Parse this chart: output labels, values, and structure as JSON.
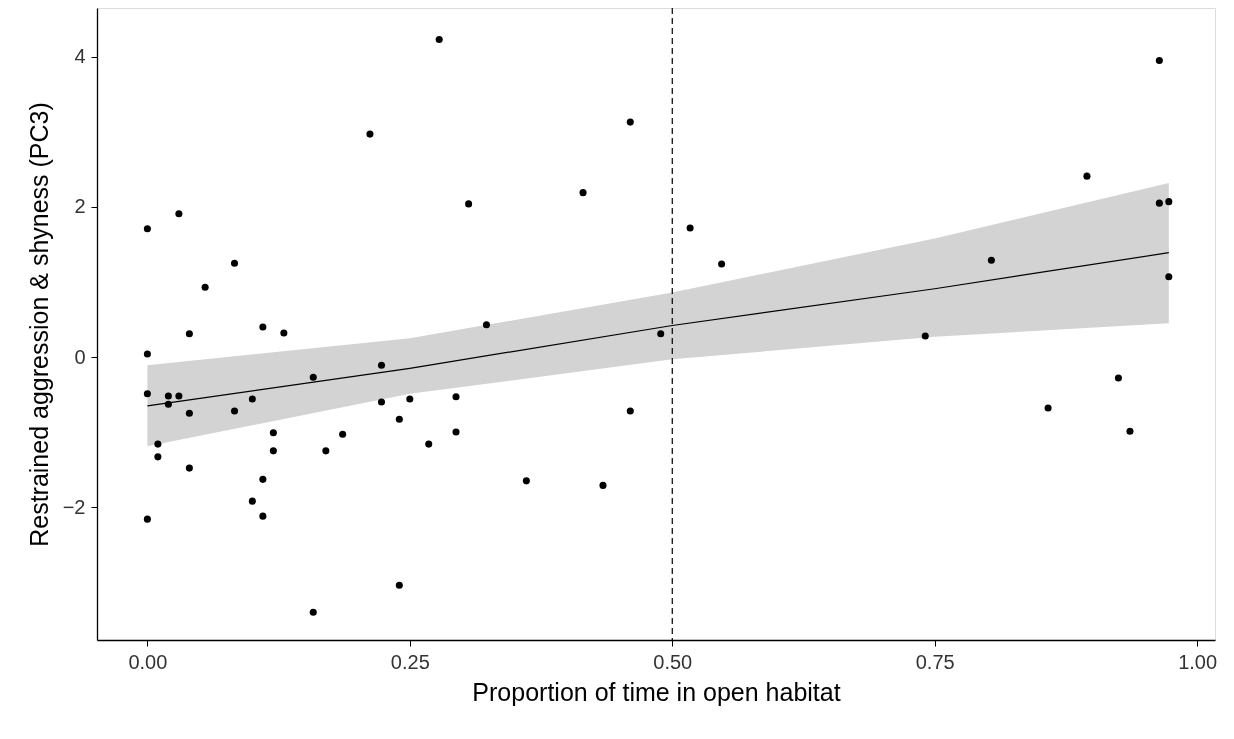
{
  "chart_data": {
    "type": "scatter",
    "xlabel": "Proportion of time in open habitat",
    "ylabel": "Restrained aggression & shyness (PC3)",
    "xlim": [
      -0.048,
      1.017
    ],
    "ylim": [
      -3.77,
      4.65
    ],
    "xticks": [
      {
        "value": 0,
        "label": "0.00"
      },
      {
        "value": 0.25,
        "label": "0.25"
      },
      {
        "value": 0.5,
        "label": "0.50"
      },
      {
        "value": 0.75,
        "label": "0.75"
      },
      {
        "value": 1,
        "label": "1.00"
      }
    ],
    "yticks": [
      -2,
      0,
      2,
      4
    ],
    "grid": false,
    "marker": "circle",
    "series": [
      {
        "color": "#000000",
        "x": [
          0,
          0,
          0,
          0,
          0.01,
          0.01,
          0.02,
          0.02,
          0.03,
          0.03,
          0.04,
          0.04,
          0.04,
          0.055,
          0.083,
          0.083,
          0.1,
          0.1,
          0.11,
          0.11,
          0.11,
          0.12,
          0.12,
          0.13,
          0.158,
          0.158,
          0.17,
          0.186,
          0.212,
          0.223,
          0.223,
          0.24,
          0.24,
          0.25,
          0.268,
          0.278,
          0.294,
          0.294,
          0.306,
          0.323,
          0.361,
          0.415,
          0.434,
          0.46,
          0.46,
          0.489,
          0.517,
          0.547,
          0.741,
          0.804,
          0.858,
          0.895,
          0.925,
          0.936,
          0.964,
          0.964,
          0.973,
          0.973
        ],
        "values": [
          1.71,
          0.04,
          -0.49,
          -2.16,
          -1.16,
          -1.33,
          -0.52,
          -0.63,
          -0.52,
          1.91,
          0.31,
          -0.75,
          -1.48,
          0.93,
          1.25,
          -0.72,
          -0.56,
          -1.92,
          0.4,
          -1.63,
          -2.12,
          -1.01,
          -1.25,
          0.32,
          -0.27,
          -3.4,
          -1.25,
          -1.03,
          2.97,
          -0.11,
          -0.6,
          -3.04,
          -0.83,
          -0.56,
          -1.16,
          4.23,
          -0.53,
          -1.0,
          2.04,
          0.43,
          -1.65,
          2.19,
          -1.71,
          3.13,
          -0.72,
          0.31,
          1.72,
          1.24,
          0.28,
          1.29,
          -0.68,
          2.41,
          -0.28,
          -0.99,
          3.95,
          2.05,
          2.07,
          1.07
        ]
      },
      {
        "type": "line",
        "marker": "none",
        "color": "#000000",
        "x": [
          0,
          0.25,
          0.5,
          0.75,
          0.973
        ],
        "values": [
          -0.65,
          -0.15,
          0.42,
          0.91,
          1.39
        ],
        "lower": [
          -1.19,
          -0.49,
          -0.03,
          0.27,
          0.45
        ],
        "upper": [
          -0.11,
          0.25,
          0.86,
          1.58,
          2.32
        ]
      }
    ],
    "ref_lines": [
      {
        "axis": "x",
        "value": 0.5,
        "color": "#000000",
        "line_style": "dashed"
      }
    ]
  }
}
